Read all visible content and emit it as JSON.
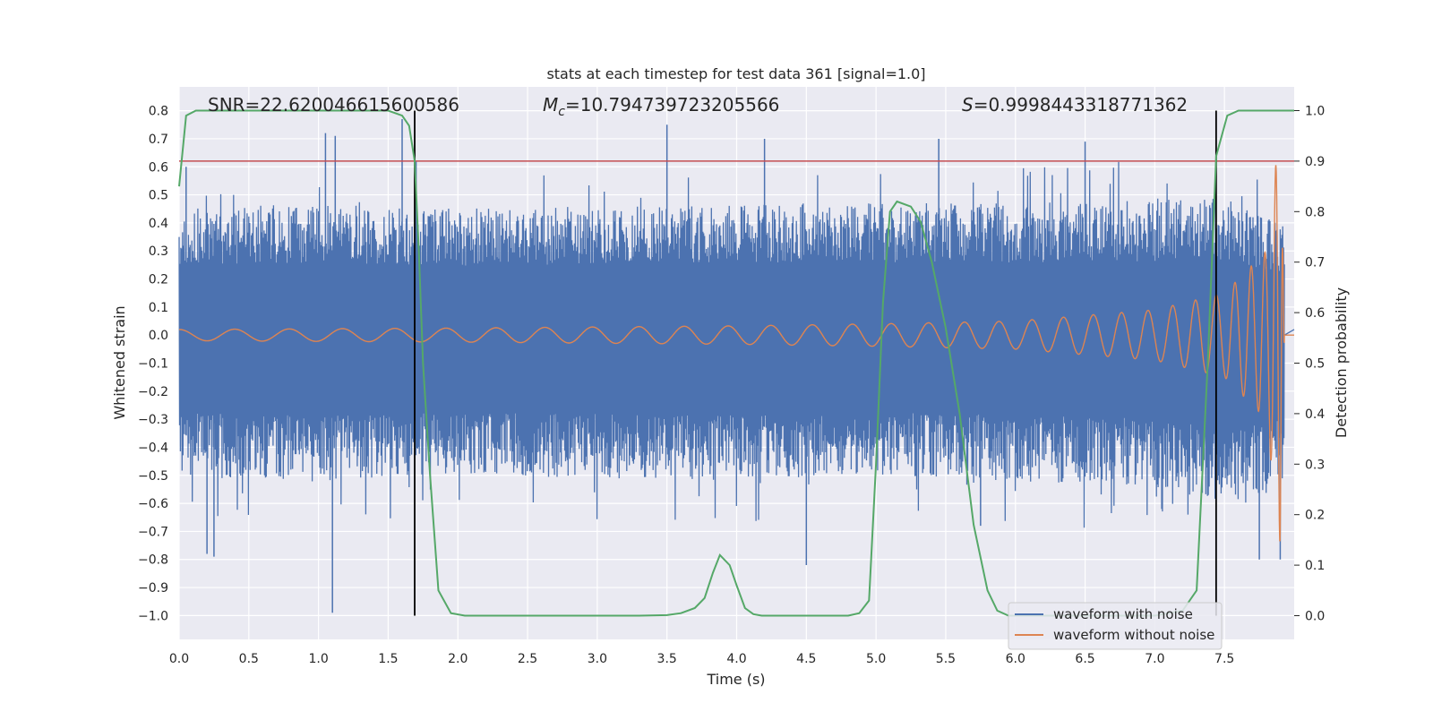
{
  "chart_data": {
    "type": "line",
    "title": "stats at each timestep for test data 361 [signal=1.0]",
    "xlabel": "Time (s)",
    "ylabel": "Whitened strain",
    "y2label": "Detection probability",
    "xlim": [
      0.0,
      8.0
    ],
    "ylim": [
      -1.085,
      0.885
    ],
    "y2lim": [
      -0.047,
      1.047
    ],
    "xticks": [
      0.0,
      0.5,
      1.0,
      1.5,
      2.0,
      2.5,
      3.0,
      3.5,
      4.0,
      4.5,
      5.0,
      5.5,
      6.0,
      6.5,
      7.0,
      7.5
    ],
    "yticks": [
      0.8,
      0.7,
      0.6,
      0.5,
      0.4,
      0.3,
      0.2,
      0.1,
      0.0,
      -0.1,
      -0.2,
      -0.3,
      -0.4,
      -0.5,
      -0.6,
      -0.7,
      -0.8,
      -0.9,
      -1.0
    ],
    "y2ticks": [
      1.0,
      0.9,
      0.8,
      0.7,
      0.6,
      0.5,
      0.4,
      0.3,
      0.2,
      0.1,
      0.0
    ],
    "grid": true,
    "legend_position": "bottom-right",
    "annotations": {
      "snr": "SNR=22.620046615600586",
      "mc_symbol": "M",
      "mc_sub": "c",
      "mc_value": "=10.794739723205566",
      "s_symbol": "S",
      "s_value": "=0.9998443318771362"
    },
    "threshold_probability": 0.9,
    "vertical_markers_x": [
      1.69,
      7.44
    ],
    "series": [
      {
        "name": "waveform with noise",
        "color": "#4c72b0",
        "description_envelope": "noise spikes",
        "envelope_x": [
          0.0,
          1.0,
          2.0,
          3.0,
          4.0,
          5.0,
          6.0,
          7.0,
          7.5,
          7.9
        ],
        "envelope_upper": [
          0.45,
          0.47,
          0.45,
          0.46,
          0.47,
          0.47,
          0.47,
          0.48,
          0.49,
          0.4
        ],
        "envelope_lower": [
          -0.5,
          -0.52,
          -0.5,
          -0.51,
          -0.52,
          -0.5,
          -0.52,
          -0.54,
          -0.6,
          -0.55
        ],
        "spikes": [
          [
            0.05,
            0.6
          ],
          [
            0.2,
            -0.78
          ],
          [
            0.25,
            -0.79
          ],
          [
            1.05,
            0.72
          ],
          [
            1.1,
            -0.99
          ],
          [
            1.12,
            0.71
          ],
          [
            1.6,
            0.77
          ],
          [
            1.7,
            0.62
          ],
          [
            3.5,
            0.75
          ],
          [
            4.2,
            0.7
          ],
          [
            4.5,
            -0.82
          ],
          [
            5.45,
            0.7
          ],
          [
            5.75,
            -0.68
          ],
          [
            6.5,
            0.69
          ],
          [
            7.05,
            -0.62
          ],
          [
            7.75,
            -0.8
          ],
          [
            7.9,
            -0.8
          ]
        ]
      },
      {
        "name": "waveform without noise",
        "color": "#dd8452",
        "chirp_t_merge": 7.93,
        "chirp_amplitude": [
          [
            0.0,
            0.02
          ],
          [
            2.0,
            0.025
          ],
          [
            4.0,
            0.033
          ],
          [
            5.0,
            0.04
          ],
          [
            6.0,
            0.05
          ],
          [
            7.0,
            0.09
          ],
          [
            7.5,
            0.15
          ],
          [
            7.8,
            0.3
          ],
          [
            7.9,
            0.75
          ],
          [
            7.93,
            0.0
          ]
        ]
      },
      {
        "name": "Detection probability",
        "axis": "right",
        "color": "#55a868",
        "x": [
          0.0,
          0.05,
          0.12,
          0.3,
          0.6,
          1.0,
          1.3,
          1.5,
          1.6,
          1.65,
          1.69,
          1.72,
          1.75,
          1.8,
          1.86,
          1.95,
          2.05,
          2.5,
          3.0,
          3.3,
          3.5,
          3.6,
          3.7,
          3.77,
          3.83,
          3.88,
          3.95,
          4.0,
          4.06,
          4.12,
          4.18,
          4.25,
          4.5,
          4.8,
          4.88,
          4.95,
          5.0,
          5.05,
          5.1,
          5.15,
          5.25,
          5.32,
          5.4,
          5.5,
          5.6,
          5.7,
          5.8,
          5.87,
          5.95,
          6.1,
          6.5,
          7.0,
          7.2,
          7.3,
          7.38,
          7.44,
          7.52,
          7.6,
          7.9,
          8.0
        ],
        "y": [
          0.85,
          0.99,
          1.0,
          1.0,
          1.0,
          1.0,
          1.0,
          1.0,
          0.99,
          0.97,
          0.9,
          0.72,
          0.5,
          0.28,
          0.05,
          0.005,
          0.0,
          0.0,
          0.0,
          0.0,
          0.001,
          0.005,
          0.015,
          0.035,
          0.085,
          0.12,
          0.1,
          0.06,
          0.015,
          0.003,
          0.0,
          0.0,
          0.0,
          0.0,
          0.005,
          0.03,
          0.3,
          0.62,
          0.8,
          0.82,
          0.81,
          0.78,
          0.7,
          0.57,
          0.4,
          0.18,
          0.05,
          0.01,
          0.0,
          0.0,
          0.0,
          0.0,
          0.01,
          0.05,
          0.5,
          0.91,
          0.99,
          1.0,
          1.0,
          1.0
        ]
      }
    ]
  }
}
